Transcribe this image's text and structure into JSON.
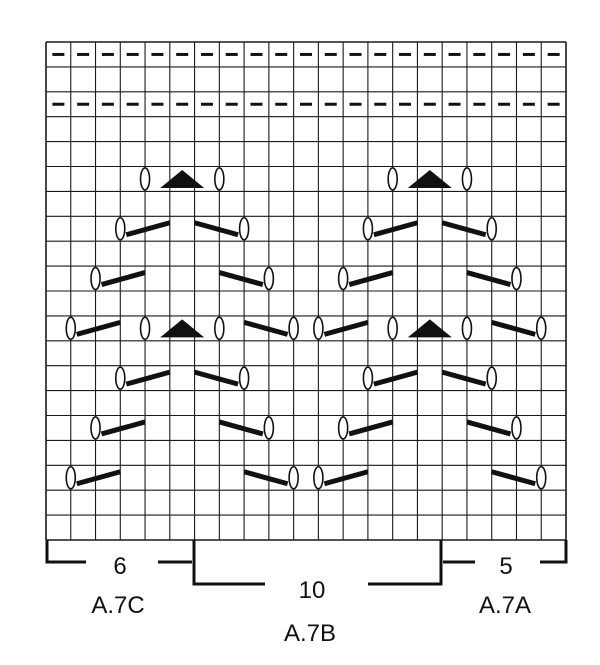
{
  "chart": {
    "columns": 21,
    "rows": 20,
    "colors": {
      "ink": "#111111",
      "grid": "#1a1a1a",
      "background": "#ffffff"
    },
    "symbols": {
      "purl_row_marks": "dash-icon",
      "yarn_over": "yarn-over-icon",
      "decrease": "slanted-decrease-icon",
      "double_decrease": "triangle-decrease-icon"
    }
  },
  "sections": [
    {
      "count": "6",
      "name": "A.7C"
    },
    {
      "count": "10",
      "name": "A.7B"
    },
    {
      "count": "5",
      "name": "A.7A"
    }
  ]
}
